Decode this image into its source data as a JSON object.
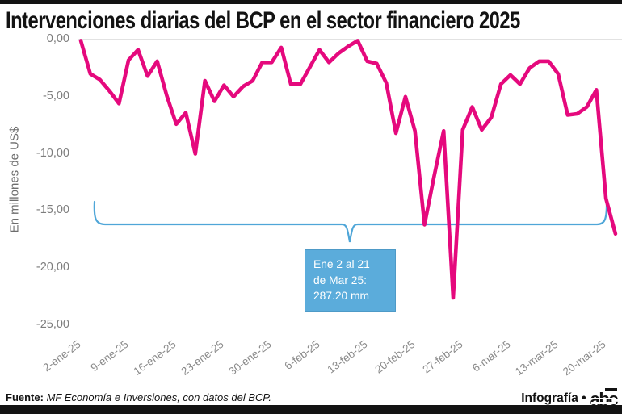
{
  "page": {
    "title": "Intervenciones diarias del BCP en el sector financiero 2025"
  },
  "chart": {
    "y_axis_label": "En millones de US$",
    "y_ticks": [
      "0,00",
      "-5,00",
      "-10,00",
      "-15,00",
      "-20,00",
      "-25,00"
    ],
    "x_ticks": [
      "2-ene-25",
      "9-ene-25",
      "16-ene-25",
      "23-ene-25",
      "30-ene-25",
      "6-feb-25",
      "13-feb-25",
      "20-feb-25",
      "27-feb-25",
      "6-mar-25",
      "13-mar-25",
      "20-mar-25"
    ],
    "callout": {
      "line1": "Ene 2 al 21 ",
      "line2": "de Mar 25:",
      "line3": "287.20 mm"
    }
  },
  "chart_data": {
    "type": "line",
    "title": "Intervenciones diarias del BCP en el sector financiero 2025",
    "xlabel": "",
    "ylabel": "En millones de US$",
    "ylim": [
      -25,
      0
    ],
    "grid": "zero-line-only",
    "legend": "none",
    "x": [
      "2-ene",
      "3-ene",
      "6-ene",
      "7-ene",
      "8-ene",
      "9-ene",
      "10-ene",
      "13-ene",
      "14-ene",
      "15-ene",
      "16-ene",
      "17-ene",
      "20-ene",
      "21-ene",
      "22-ene",
      "23-ene",
      "24-ene",
      "27-ene",
      "28-ene",
      "29-ene",
      "30-ene",
      "31-ene",
      "3-feb",
      "4-feb",
      "5-feb",
      "6-feb",
      "7-feb",
      "10-feb",
      "11-feb",
      "12-feb",
      "13-feb",
      "14-feb",
      "17-feb",
      "18-feb",
      "19-feb",
      "20-feb",
      "21-feb",
      "24-feb",
      "25-feb",
      "26-feb",
      "27-feb",
      "28-feb",
      "3-mar",
      "4-mar",
      "5-mar",
      "6-mar",
      "7-mar",
      "10-mar",
      "11-mar",
      "12-mar",
      "13-mar",
      "14-mar",
      "17-mar",
      "18-mar",
      "19-mar",
      "20-mar",
      "21-mar"
    ],
    "values": [
      -0.1,
      -3.0,
      -3.5,
      -4.5,
      -5.6,
      -1.8,
      -0.9,
      -3.2,
      -1.9,
      -4.9,
      -7.4,
      -6.4,
      -10.0,
      -3.6,
      -5.4,
      -4.0,
      -5.0,
      -4.1,
      -3.6,
      -2.0,
      -2.0,
      -0.7,
      -3.9,
      -3.9,
      -2.4,
      -0.9,
      -2.0,
      -1.2,
      -0.6,
      -0.1,
      -1.9,
      -2.1,
      -3.8,
      -8.2,
      -5.0,
      -8.0,
      -16.2,
      -12.0,
      -8.0,
      -22.6,
      -7.9,
      -5.9,
      -7.9,
      -6.8,
      -3.9,
      -3.1,
      -3.9,
      -2.5,
      -1.9,
      -1.9,
      -3.0,
      -6.6,
      -6.5,
      -5.9,
      -4.4,
      -13.9,
      -17.0
    ],
    "annotation": {
      "text": "Ene 2 al 21 de Mar 25: 287.20 mm",
      "total_mm": 287.2,
      "bracket_range": [
        "2-ene-25",
        "21-mar-25"
      ]
    }
  },
  "footer": {
    "source_label": "Fuente:",
    "source_text": "MF Economía e Inversiones, con datos del BCP.",
    "credit_label": "Infografía •",
    "logo_text": "abc"
  },
  "colors": {
    "line": "#E5097D",
    "callout_bg": "#5BACDB",
    "bracket": "#4FA6D8",
    "grid": "#D9D9D9",
    "axis_text": "#7D7D7D",
    "bars": "#131313"
  }
}
